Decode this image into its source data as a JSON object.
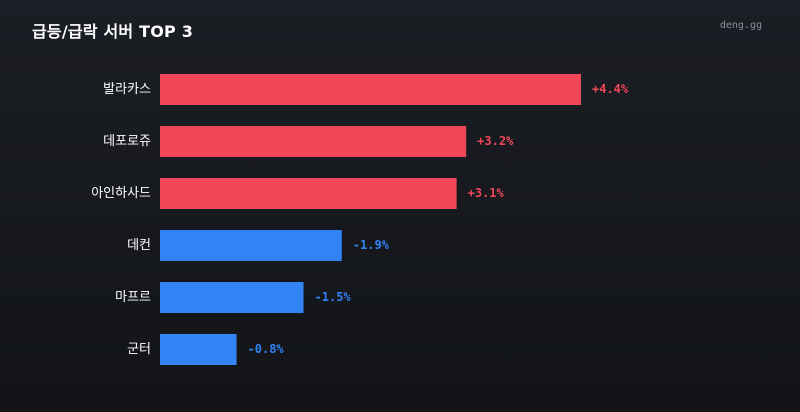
{
  "header": {
    "title": "급등/급락 서버 TOP 3",
    "brand": "deng.gg"
  },
  "colors": {
    "up": "#ef4757",
    "down": "#3283f4",
    "background": "#16181c",
    "text": "#ffffff",
    "muted": "#8b919c"
  },
  "chart_data": {
    "type": "bar",
    "orientation": "horizontal",
    "title": "급등/급락 서버 TOP 3",
    "categories": [
      "발라카스",
      "데포로쥬",
      "아인하사드",
      "데컨",
      "마프르",
      "군터"
    ],
    "values": [
      4.4,
      3.2,
      3.1,
      -1.9,
      -1.5,
      -0.8
    ],
    "labels": [
      "+4.4%",
      "+3.2%",
      "+3.1%",
      "-1.9%",
      "-1.5%",
      "-0.8%"
    ],
    "unit": "%",
    "grid": false,
    "legend": "none"
  }
}
